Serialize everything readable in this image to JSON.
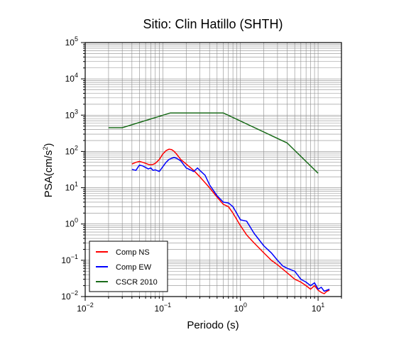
{
  "chart_data": {
    "type": "line",
    "title": "Sitio: Clin Hatillo (SHTH)",
    "xlabel": "Periodo (s)",
    "ylabel_base": "PSA(cm/s",
    "ylabel_exp": "2",
    "ylabel_end": ")",
    "xscale": "log",
    "yscale": "log",
    "xlim": [
      0.01,
      20
    ],
    "ylim": [
      0.01,
      100000
    ],
    "grid": true,
    "legend_position": "bottom-left",
    "x_ticks": [
      {
        "value": 0.01,
        "base": "10",
        "exp": "−2"
      },
      {
        "value": 0.1,
        "base": "10",
        "exp": "−1"
      },
      {
        "value": 1,
        "base": "10",
        "exp": "0"
      },
      {
        "value": 10,
        "base": "10",
        "exp": "1"
      }
    ],
    "y_ticks": [
      {
        "value": 0.01,
        "base": "10",
        "exp": "−2"
      },
      {
        "value": 0.1,
        "base": "10",
        "exp": "−1"
      },
      {
        "value": 1,
        "base": "10",
        "exp": "0"
      },
      {
        "value": 10,
        "base": "10",
        "exp": "1"
      },
      {
        "value": 100,
        "base": "10",
        "exp": "2"
      },
      {
        "value": 1000,
        "base": "10",
        "exp": "3"
      },
      {
        "value": 10000,
        "base": "10",
        "exp": "4"
      },
      {
        "value": 100000,
        "base": "10",
        "exp": "5"
      }
    ],
    "series": [
      {
        "name": "Comp NS",
        "color": "#ff0000",
        "x": [
          0.04,
          0.045,
          0.05,
          0.055,
          0.06,
          0.065,
          0.07,
          0.075,
          0.08,
          0.09,
          0.1,
          0.11,
          0.12,
          0.13,
          0.14,
          0.15,
          0.17,
          0.2,
          0.25,
          0.3,
          0.4,
          0.5,
          0.6,
          0.7,
          0.8,
          1.0,
          1.2,
          1.5,
          2.0,
          2.5,
          3.0,
          4.0,
          5.0,
          6.0,
          7.0,
          8.0,
          9.0,
          10.0,
          11.0,
          12.0,
          13.0,
          14.0
        ],
        "y": [
          45,
          50,
          53,
          50,
          47,
          44,
          43,
          44,
          47,
          60,
          85,
          105,
          115,
          112,
          100,
          85,
          60,
          45,
          30,
          20,
          10,
          5.5,
          3.5,
          3.0,
          2.0,
          0.9,
          0.5,
          0.3,
          0.16,
          0.1,
          0.075,
          0.045,
          0.03,
          0.025,
          0.02,
          0.016,
          0.02,
          0.015,
          0.013,
          0.012,
          0.014,
          0.015
        ]
      },
      {
        "name": "Comp EW",
        "color": "#0000ff",
        "x": [
          0.04,
          0.045,
          0.05,
          0.055,
          0.06,
          0.065,
          0.07,
          0.075,
          0.08,
          0.09,
          0.1,
          0.11,
          0.12,
          0.13,
          0.14,
          0.15,
          0.17,
          0.2,
          0.25,
          0.28,
          0.3,
          0.35,
          0.4,
          0.5,
          0.6,
          0.7,
          0.8,
          1.0,
          1.2,
          1.5,
          2.0,
          2.5,
          3.0,
          3.5,
          4.0,
          5.0,
          6.0,
          7.0,
          8.0,
          9.0,
          10.0,
          11.0,
          12.0,
          13.0,
          14.0
        ],
        "y": [
          32,
          30,
          42,
          40,
          36,
          33,
          35,
          30,
          31,
          28,
          38,
          50,
          60,
          65,
          68,
          65,
          55,
          35,
          28,
          35,
          30,
          22,
          12,
          6,
          4.0,
          3.8,
          3.0,
          1.3,
          1.2,
          0.55,
          0.25,
          0.16,
          0.1,
          0.07,
          0.06,
          0.05,
          0.03,
          0.025,
          0.02,
          0.024,
          0.016,
          0.018,
          0.014,
          0.015,
          0.016
        ]
      },
      {
        "name": "CSCR 2010",
        "color": "#1a6b1a",
        "x": [
          0.02,
          0.03,
          0.125,
          0.6,
          4.0,
          10.0
        ],
        "y": [
          450,
          450,
          1150,
          1150,
          170,
          25
        ]
      }
    ]
  }
}
